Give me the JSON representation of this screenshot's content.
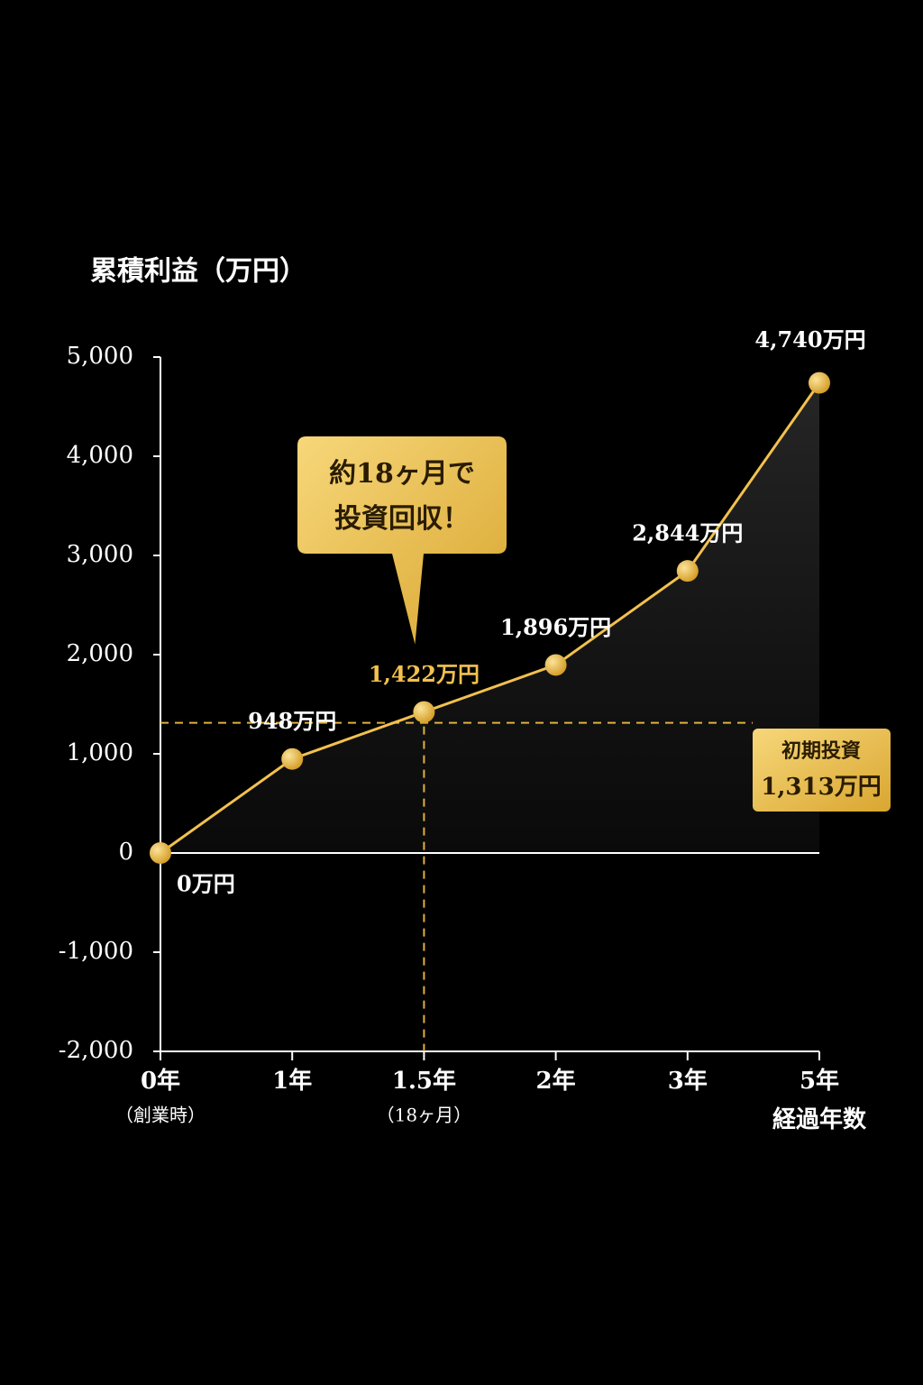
{
  "chart_data": {
    "type": "line",
    "title": "累積利益（万円）",
    "x_title": "経過年数",
    "categories": [
      "0年",
      "1年",
      "1.5年",
      "2年",
      "3年",
      "5年"
    ],
    "x_sublabels": [
      "（創業時）",
      null,
      "（18ヶ月）",
      null,
      null,
      null
    ],
    "values": [
      0,
      948,
      1422,
      1896,
      2844,
      4740
    ],
    "value_labels": [
      "0万円",
      "948万円",
      "1,422万円",
      "1,896万円",
      "2,844万円",
      "4,740万円"
    ],
    "value_label_colors": [
      "#ffffff",
      "#ffffff",
      "#f2c14e",
      "#ffffff",
      "#ffffff",
      "#ffffff"
    ],
    "color": "#f2c14e",
    "ylim": [
      -2000,
      5000
    ],
    "yticks": [
      {
        "value": -2000,
        "label": "-2,000"
      },
      {
        "value": -1000,
        "label": "-1,000"
      },
      0,
      {
        "value": 1000,
        "label": "1,000"
      },
      {
        "value": 2000,
        "label": "2,000"
      },
      {
        "value": 3000,
        "label": "3,000"
      },
      {
        "value": 4000,
        "label": "4,000"
      },
      {
        "value": 5000,
        "label": "5,000"
      }
    ],
    "reference": {
      "value": 1313,
      "label_lines": [
        "初期投資",
        "1,313万円"
      ]
    },
    "callout": {
      "category_index": 2,
      "lines": [
        "約18ヶ月で",
        "投資回収！"
      ]
    }
  }
}
